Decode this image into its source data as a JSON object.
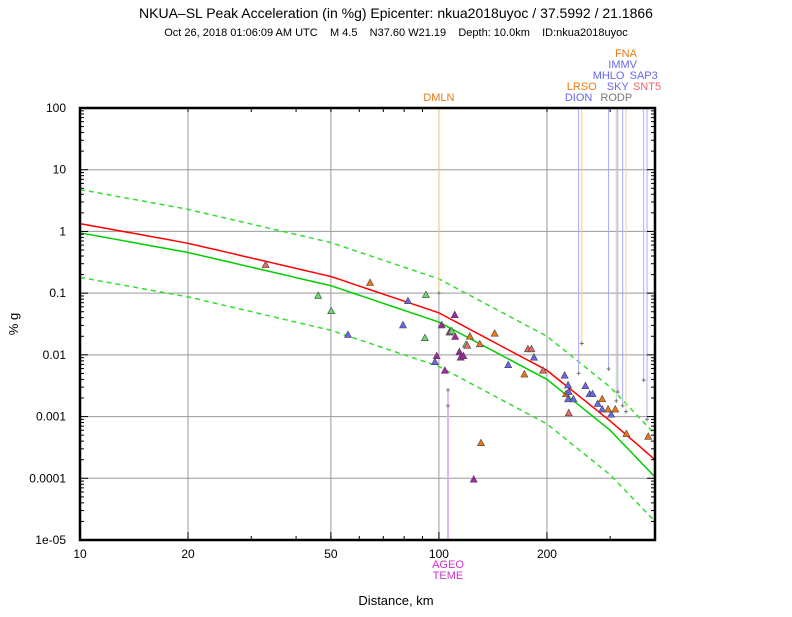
{
  "chart_data": {
    "type": "scatter",
    "title": "NKUA–SL Peak Acceleration (in %g) Epicenter: nkua2018uyoc / 37.5992 / 21.1866",
    "subtitle": "Oct 26, 2018 01:06:09 AM UTC    M 4.5    N37.60 W21.19    Depth: 10.0km    ID:nkua2018uyoc",
    "xlabel": "Distance, km",
    "ylabel": "% g",
    "xscale": "log",
    "yscale": "log",
    "xlim": [
      10,
      400
    ],
    "ylim": [
      1e-05,
      100
    ],
    "grid": true,
    "x_ticks": [
      {
        "v": 10,
        "label": "10"
      },
      {
        "v": 20,
        "label": "20"
      },
      {
        "v": 50,
        "label": "50"
      },
      {
        "v": 100,
        "label": "100"
      },
      {
        "v": 200,
        "label": "200"
      }
    ],
    "y_ticks": [
      {
        "v": 100,
        "label": "100"
      },
      {
        "v": 10,
        "label": "10"
      },
      {
        "v": 1,
        "label": "1"
      },
      {
        "v": 0.1,
        "label": "0.1"
      },
      {
        "v": 0.01,
        "label": "0.01"
      },
      {
        "v": 0.001,
        "label": "0.001"
      },
      {
        "v": 0.0001,
        "label": "0.0001"
      },
      {
        "v": 1e-05,
        "label": "1e-05"
      }
    ],
    "curves": [
      {
        "name": "upper",
        "color": "#33dd33",
        "dashed": true,
        "x": [
          10,
          20,
          50,
          100,
          200,
          300,
          400
        ],
        "y": [
          4.77,
          2.28,
          0.66,
          0.17,
          0.02,
          0.003,
          0.00052
        ]
      },
      {
        "name": "median-red",
        "color": "#ff0000",
        "dashed": false,
        "x": [
          10,
          20,
          50,
          100,
          200,
          300,
          400
        ],
        "y": [
          1.34,
          0.643,
          0.186,
          0.048,
          0.0056,
          0.00085,
          0.0002
        ]
      },
      {
        "name": "median-green",
        "color": "#00cc00",
        "dashed": false,
        "x": [
          10,
          20,
          50,
          100,
          200,
          300,
          400
        ],
        "y": [
          0.95,
          0.456,
          0.132,
          0.034,
          0.004,
          0.0006,
          0.000105
        ]
      },
      {
        "name": "lower",
        "color": "#33dd33",
        "dashed": true,
        "x": [
          10,
          20,
          50,
          100,
          200,
          300,
          400
        ],
        "y": [
          0.18,
          0.087,
          0.025,
          0.0065,
          0.00076,
          0.000114,
          2e-05
        ]
      }
    ],
    "point_colors": {
      "green": "#66dd66",
      "blue": "#6666ee",
      "magenta": "#aa22aa",
      "orange": "#ee7711",
      "salmon": "#ee6666"
    },
    "points": [
      [
        32.9,
        0.285,
        "salmon"
      ],
      [
        46.1,
        0.09,
        "green"
      ],
      [
        50.1,
        0.051,
        "green"
      ],
      [
        55.8,
        0.021,
        "blue"
      ],
      [
        64.3,
        0.146,
        "orange"
      ],
      [
        79.4,
        0.03,
        "blue"
      ],
      [
        82,
        0.074,
        "blue"
      ],
      [
        92,
        0.093,
        "green"
      ],
      [
        91.4,
        0.0186,
        "green"
      ],
      [
        97.5,
        0.0076,
        "blue"
      ],
      [
        98.6,
        0.0095,
        "magenta"
      ],
      [
        101.8,
        0.03,
        "magenta"
      ],
      [
        103.9,
        0.0055,
        "magenta"
      ],
      [
        110.7,
        0.044,
        "magenta"
      ],
      [
        107,
        0.023,
        "magenta"
      ],
      [
        108.5,
        0.024,
        "green"
      ],
      [
        111,
        0.0195,
        "magenta"
      ],
      [
        114,
        0.011,
        "magenta"
      ],
      [
        115,
        0.009,
        "magenta"
      ],
      [
        117,
        0.0095,
        "magenta"
      ],
      [
        119,
        0.0146,
        "green"
      ],
      [
        120,
        0.014,
        "salmon"
      ],
      [
        122,
        0.0197,
        "orange"
      ],
      [
        130,
        0.0148,
        "orange"
      ],
      [
        143,
        0.022,
        "orange"
      ],
      [
        156,
        0.0068,
        "blue"
      ],
      [
        173,
        0.0048,
        "orange"
      ],
      [
        177,
        0.0123,
        "salmon"
      ],
      [
        181,
        0.0123,
        "salmon"
      ],
      [
        184,
        0.009,
        "blue"
      ],
      [
        195,
        0.0055,
        "salmon"
      ],
      [
        224,
        0.0046,
        "blue"
      ],
      [
        229,
        0.0032,
        "blue"
      ],
      [
        226,
        0.0023,
        "orange"
      ],
      [
        230,
        0.0025,
        "blue"
      ],
      [
        229,
        0.0019,
        "blue"
      ],
      [
        230,
        0.00113,
        "salmon"
      ],
      [
        237,
        0.0019,
        "blue"
      ],
      [
        256,
        0.0031,
        "blue"
      ],
      [
        263,
        0.0023,
        "blue"
      ],
      [
        268,
        0.0023,
        "blue"
      ],
      [
        277,
        0.0016,
        "blue"
      ],
      [
        285,
        0.0019,
        "orange"
      ],
      [
        285,
        0.0013,
        "blue"
      ],
      [
        296,
        0.0013,
        "orange"
      ],
      [
        302,
        0.00107,
        "blue"
      ],
      [
        310,
        0.0013,
        "orange"
      ],
      [
        333,
        0.00052,
        "orange"
      ],
      [
        383,
        0.00047,
        "orange"
      ],
      [
        131,
        0.00037,
        "orange"
      ],
      [
        125,
        9.5e-05,
        "magenta"
      ]
    ],
    "stations": [
      {
        "name": "DMLN",
        "d": 100,
        "pga": 0.1,
        "color": "#ee7711",
        "pos": "top",
        "row": 0
      },
      {
        "name": "AGEO",
        "d": 106,
        "pga": 0.0027,
        "color": "#cc33cc",
        "pos": "bottom",
        "row": 0
      },
      {
        "name": "TEME",
        "d": 106,
        "pga": 0.0015,
        "color": "#cc33cc",
        "pos": "bottom",
        "row": 1
      },
      {
        "name": "DION",
        "d": 245,
        "pga": 0.005,
        "color": "#6666ee",
        "pos": "top",
        "row": 0
      },
      {
        "name": "LRSO",
        "d": 250,
        "pga": 0.0153,
        "color": "#ee7711",
        "pos": "top",
        "row": 1
      },
      {
        "name": "MHLO",
        "d": 297,
        "pga": 0.0059,
        "color": "#6666ee",
        "pos": "top",
        "row": 2
      },
      {
        "name": "RODP",
        "d": 312,
        "pga": 0.0018,
        "color": "#777777",
        "pos": "top",
        "row": 0
      },
      {
        "name": "SKY",
        "d": 315,
        "pga": 0.0025,
        "color": "#6666ee",
        "pos": "top",
        "row": 1
      },
      {
        "name": "IMMV",
        "d": 325,
        "pga": 0.0015,
        "color": "#6666ee",
        "pos": "top",
        "row": 3
      },
      {
        "name": "FNA",
        "d": 332,
        "pga": 0.0012,
        "color": "#ee7711",
        "pos": "top",
        "row": 4
      },
      {
        "name": "SAP3",
        "d": 372,
        "pga": 0.0039,
        "color": "#6666ee",
        "pos": "top",
        "row": 2
      },
      {
        "name": "SNT5",
        "d": 380,
        "pga": 0.0009,
        "color": "#ee6666",
        "pos": "top",
        "row": 1
      }
    ]
  }
}
